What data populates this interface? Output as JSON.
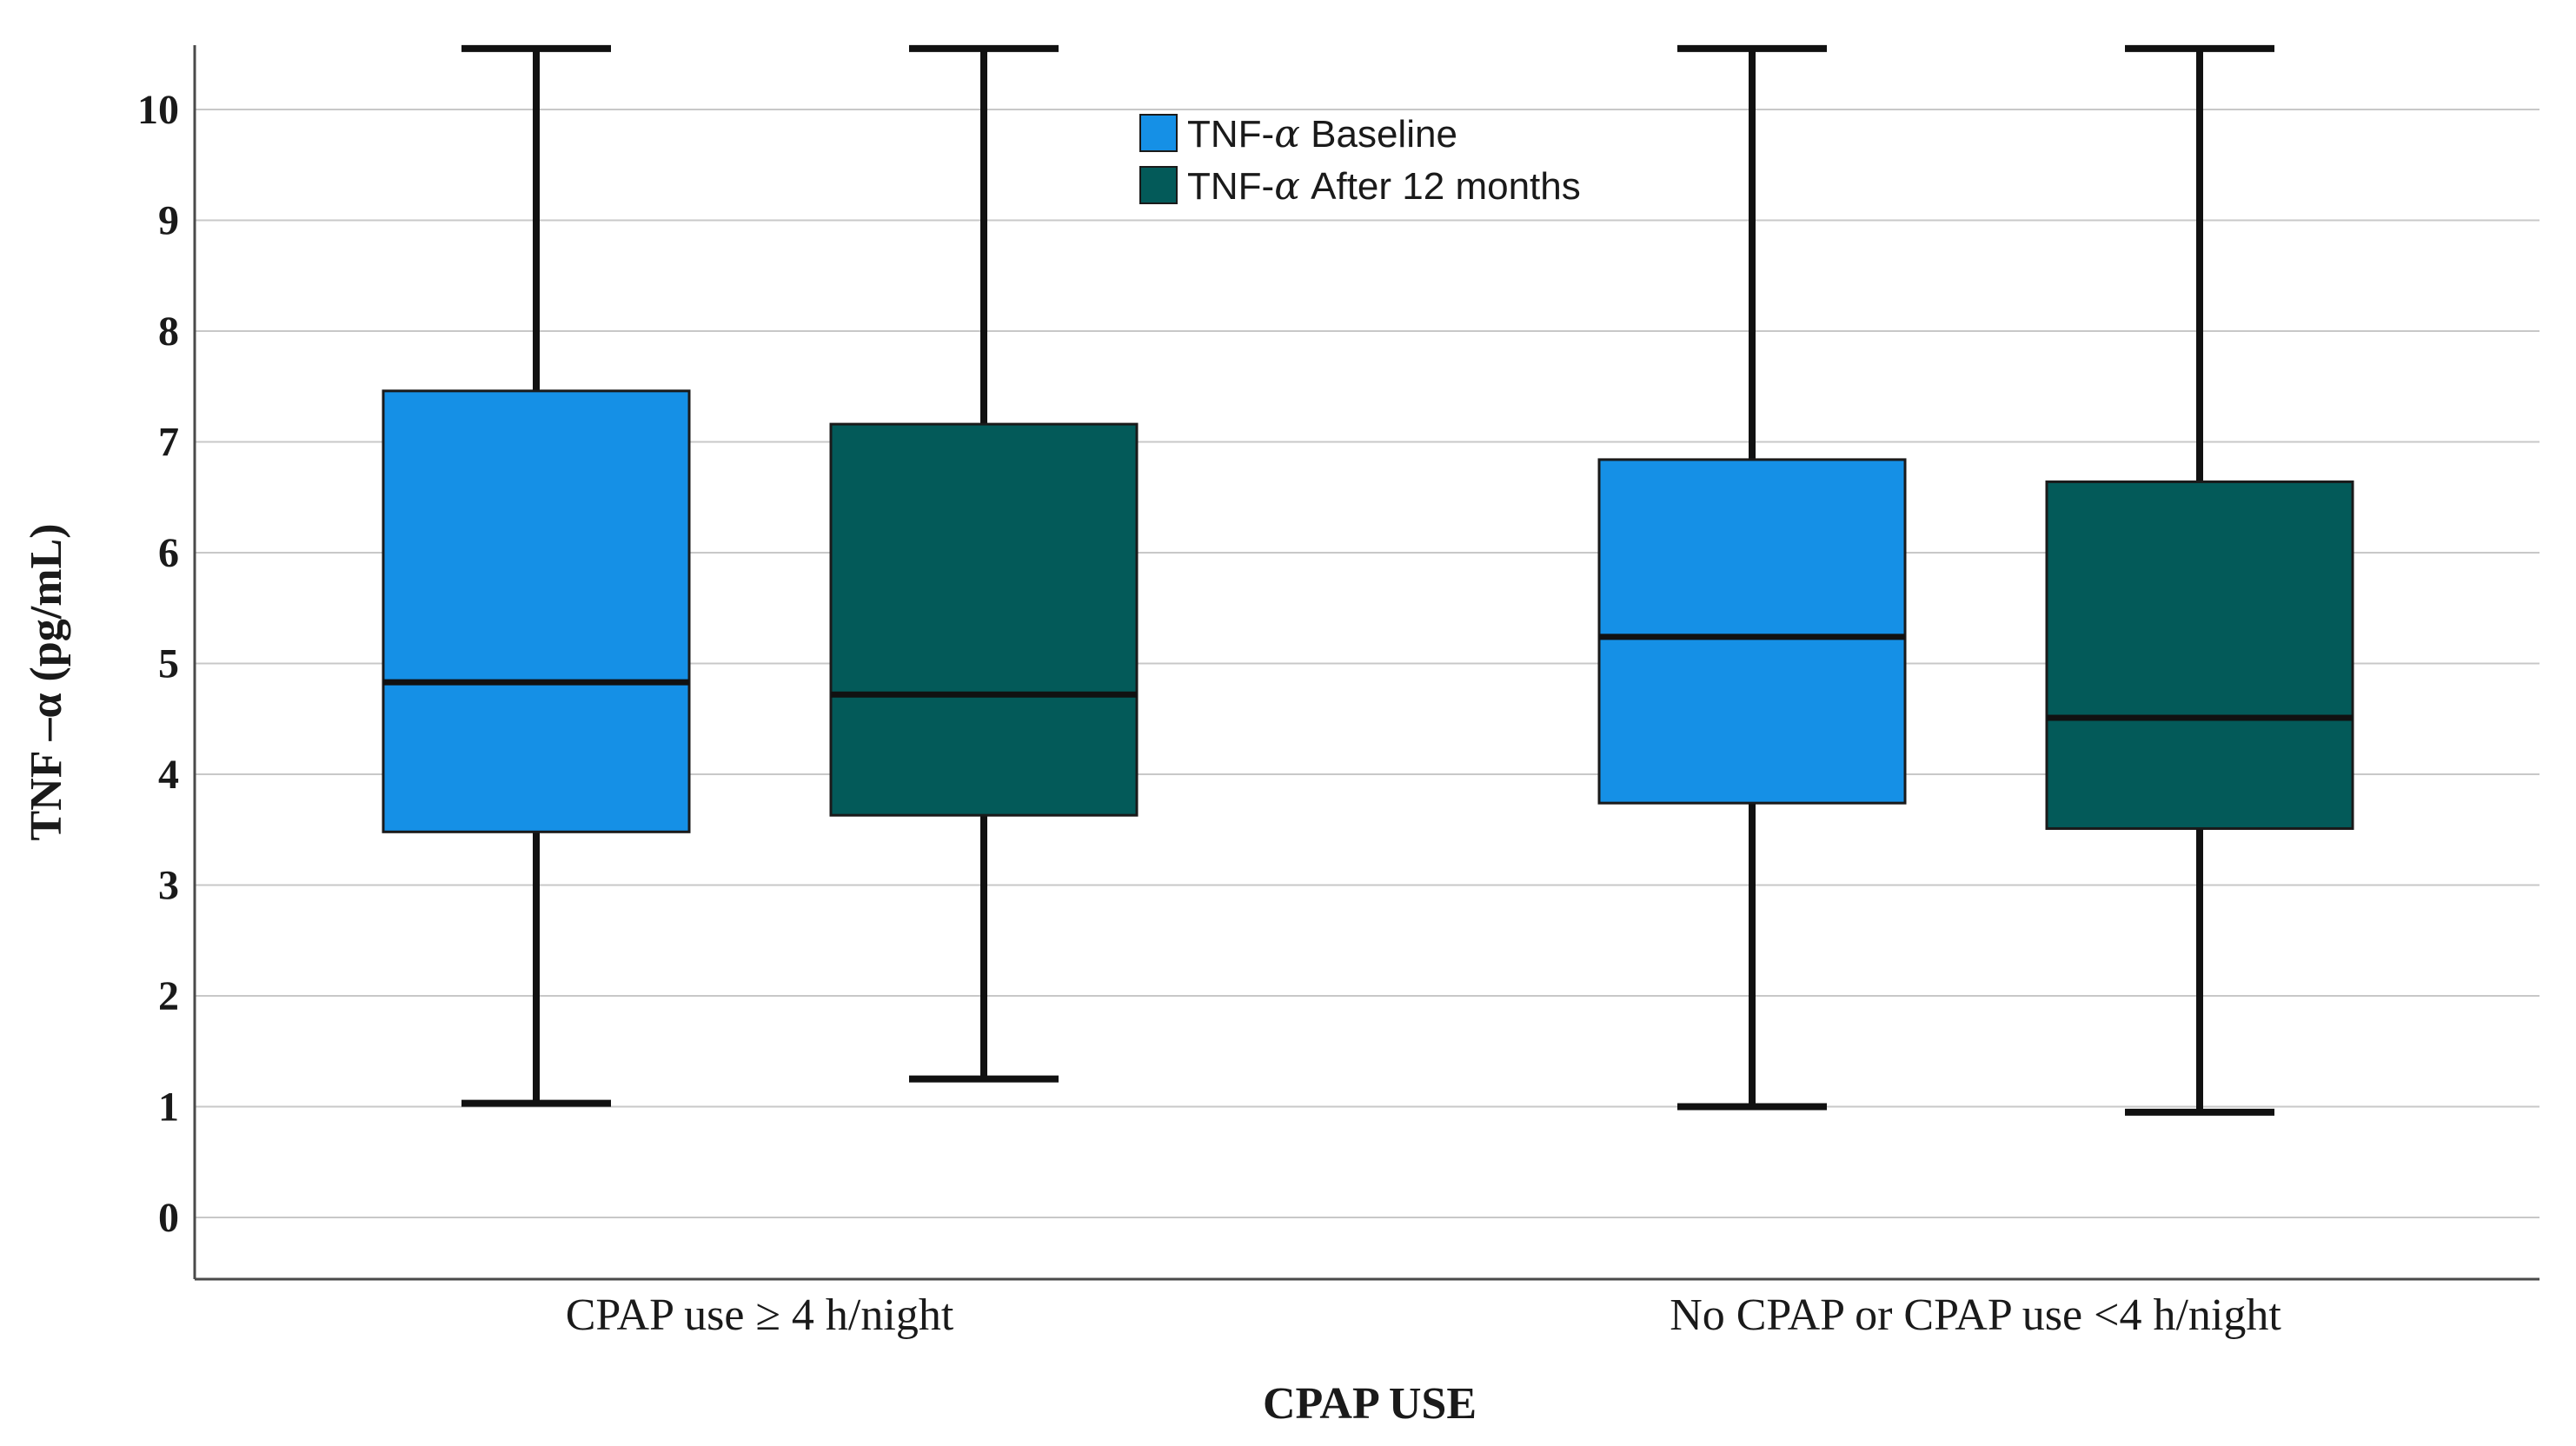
{
  "chart_data": {
    "type": "boxplot",
    "title": "",
    "xlabel": "CPAP USE",
    "ylabel": "TNF –α (pg/mL)",
    "ylim": [
      -0.55,
      10.55
    ],
    "yticks": [
      0,
      1,
      2,
      3,
      4,
      5,
      6,
      7,
      8,
      9,
      10
    ],
    "grid": true,
    "legend_position": "top-center",
    "categories": [
      "CPAP use ≥ 4 h/night",
      "No CPAP or CPAP use <4 h/night"
    ],
    "series": [
      {
        "name": "TNF-α Baseline",
        "color": "#1590e6",
        "boxes": [
          {
            "min": 1.03,
            "q1": 3.48,
            "median": 4.83,
            "q3": 7.46,
            "max": 10.55
          },
          {
            "min": 1.0,
            "q1": 3.74,
            "median": 5.24,
            "q3": 6.84,
            "max": 10.55
          }
        ]
      },
      {
        "name": "TNF-α After 12 months",
        "color": "#035a59",
        "boxes": [
          {
            "min": 1.25,
            "q1": 3.63,
            "median": 4.72,
            "q3": 7.16,
            "max": 10.55
          },
          {
            "min": 0.95,
            "q1": 3.51,
            "median": 4.51,
            "q3": 6.64,
            "max": 10.55
          }
        ]
      }
    ]
  },
  "legend": {
    "items": [
      {
        "prefix": "TNF-",
        "greek": "α",
        "suffix": " Baseline"
      },
      {
        "prefix": "TNF-",
        "greek": "α",
        "suffix": " After 12 months"
      }
    ]
  }
}
